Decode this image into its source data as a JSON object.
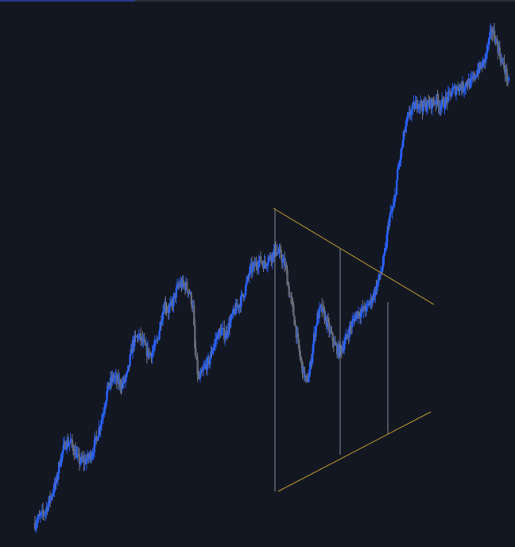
{
  "colors": {
    "background": "#131722",
    "accent": "#2a3a8f",
    "bull": "#2962ff",
    "bear": "#636875",
    "wick": "#7f8592",
    "pattern": "#9c7d2a"
  },
  "chart_data": {
    "type": "candlestick",
    "title": "",
    "xlabel": "",
    "ylabel": "",
    "ylim": [
      0,
      688
    ],
    "grid": false,
    "legend": "none",
    "close_path": [
      [
        0,
        30
      ],
      [
        6,
        38
      ],
      [
        12,
        46
      ],
      [
        18,
        64
      ],
      [
        24,
        82
      ],
      [
        28,
        108
      ],
      [
        34,
        130
      ],
      [
        40,
        132
      ],
      [
        45,
        120
      ],
      [
        50,
        108
      ],
      [
        56,
        108
      ],
      [
        60,
        112
      ],
      [
        64,
        118
      ],
      [
        70,
        140
      ],
      [
        76,
        166
      ],
      [
        82,
        200
      ],
      [
        88,
        214
      ],
      [
        93,
        208
      ],
      [
        98,
        204
      ],
      [
        104,
        216
      ],
      [
        110,
        256
      ],
      [
        116,
        266
      ],
      [
        121,
        258
      ],
      [
        126,
        246
      ],
      [
        130,
        242
      ],
      [
        134,
        250
      ],
      [
        138,
        260
      ],
      [
        142,
        288
      ],
      [
        146,
        306
      ],
      [
        150,
        298
      ],
      [
        154,
        304
      ],
      [
        158,
        318
      ],
      [
        162,
        330
      ],
      [
        166,
        330
      ],
      [
        170,
        328
      ],
      [
        174,
        320
      ],
      [
        178,
        300
      ],
      [
        180,
        248
      ],
      [
        184,
        210
      ],
      [
        188,
        218
      ],
      [
        192,
        228
      ],
      [
        196,
        234
      ],
      [
        200,
        250
      ],
      [
        206,
        268
      ],
      [
        210,
        272
      ],
      [
        214,
        266
      ],
      [
        218,
        278
      ],
      [
        222,
        290
      ],
      [
        226,
        300
      ],
      [
        230,
        306
      ],
      [
        236,
        322
      ],
      [
        242,
        348
      ],
      [
        246,
        352
      ],
      [
        250,
        358
      ],
      [
        254,
        360
      ],
      [
        258,
        356
      ],
      [
        262,
        362
      ],
      [
        266,
        366
      ],
      [
        270,
        374
      ],
      [
        276,
        368
      ],
      [
        282,
        352
      ],
      [
        286,
        320
      ],
      [
        290,
        300
      ],
      [
        294,
        270
      ],
      [
        298,
        240
      ],
      [
        302,
        220
      ],
      [
        306,
        206
      ],
      [
        310,
        228
      ],
      [
        314,
        264
      ],
      [
        318,
        290
      ],
      [
        322,
        300
      ],
      [
        326,
        290
      ],
      [
        330,
        276
      ],
      [
        334,
        264
      ],
      [
        338,
        252
      ],
      [
        342,
        246
      ],
      [
        346,
        252
      ],
      [
        350,
        262
      ],
      [
        354,
        274
      ],
      [
        358,
        284
      ],
      [
        362,
        294
      ],
      [
        368,
        296
      ],
      [
        374,
        302
      ],
      [
        380,
        314
      ],
      [
        385,
        330
      ],
      [
        390,
        348
      ],
      [
        394,
        370
      ],
      [
        398,
        410
      ],
      [
        404,
        430
      ],
      [
        408,
        470
      ],
      [
        412,
        496
      ],
      [
        416,
        524
      ],
      [
        420,
        540
      ],
      [
        424,
        550
      ],
      [
        428,
        556
      ],
      [
        432,
        560
      ],
      [
        436,
        554
      ],
      [
        440,
        556
      ],
      [
        446,
        558
      ],
      [
        452,
        562
      ],
      [
        456,
        556
      ],
      [
        460,
        558
      ],
      [
        464,
        564
      ],
      [
        470,
        574
      ],
      [
        474,
        576
      ],
      [
        478,
        580
      ],
      [
        482,
        578
      ],
      [
        486,
        586
      ],
      [
        490,
        582
      ],
      [
        494,
        590
      ],
      [
        498,
        600
      ],
      [
        502,
        604
      ],
      [
        506,
        612
      ],
      [
        510,
        632
      ],
      [
        514,
        650
      ],
      [
        518,
        640
      ],
      [
        522,
        624
      ],
      [
        526,
        608
      ],
      [
        530,
        596
      ],
      [
        533,
        584
      ]
    ]
  }
}
